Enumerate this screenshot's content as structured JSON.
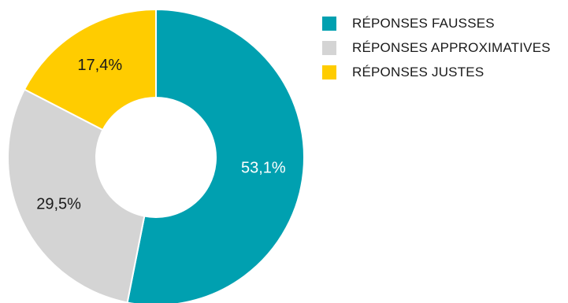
{
  "chart_data": {
    "type": "pie",
    "variant": "donut",
    "series": [
      {
        "name": "RÉPONSES FAUSSES",
        "value": 53.1,
        "label": "53,1%",
        "color": "#00a0b0",
        "label_color": "#ffffff"
      },
      {
        "name": "RÉPONSES APPROXIMATIVES",
        "value": 29.5,
        "label": "29,5%",
        "color": "#d4d4d4",
        "label_color": "#1a1a1a"
      },
      {
        "name": "RÉPONSES JUSTES",
        "value": 17.4,
        "label": "17,4%",
        "color": "#ffcc00",
        "label_color": "#1a1a1a"
      }
    ],
    "legend": "top-right"
  }
}
